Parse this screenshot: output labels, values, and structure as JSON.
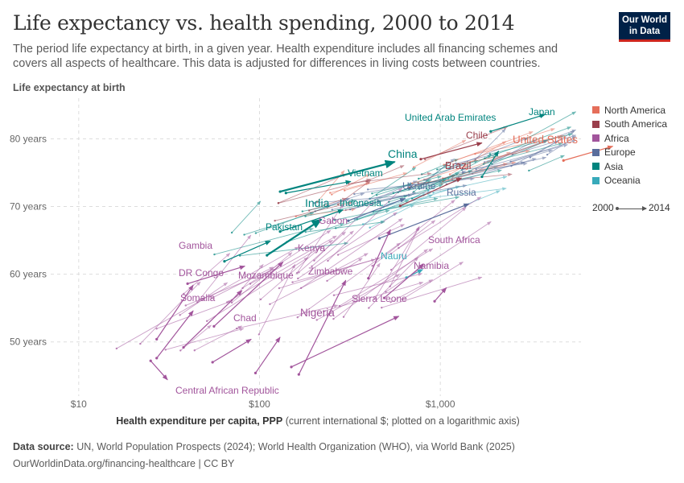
{
  "title": "Life expectancy vs. health spending, 2000 to 2014",
  "subtitle": "The period life expectancy at birth, in a given year. Health expenditure includes all financing schemes and covers all aspects of healthcare. This data is adjusted for differences in living costs between countries.",
  "logo": {
    "line1": "Our World",
    "line2": "in Data"
  },
  "footer": {
    "source_label": "Data source:",
    "source_text": "UN, World Population Prospects (2024); World Health Organization (WHO), via World Bank (2025)",
    "url": "OurWorldinData.org/financing-healthcare | CC BY"
  },
  "legend": {
    "start_year": "2000",
    "end_year": "2014"
  },
  "colors": {
    "North America": "#e56e5a",
    "South America": "#9a3f4c",
    "Africa": "#a2559c",
    "Europe": "#5a6d9c",
    "Asia": "#00847e",
    "Oceania": "#38aaba"
  },
  "chart_data": {
    "type": "scatter",
    "title": "Life expectancy vs. health spending, 2000 to 2014",
    "ylabel": "Life expectancy at birth",
    "xlabel_bold": "Health expenditure per capita, PPP",
    "xlabel_rest": "(current international $; plotted on a logarithmic axis)",
    "x_scale": "log",
    "xlim": [
      7,
      6000
    ],
    "ylim": [
      42,
      86
    ],
    "x_ticks": [
      10,
      100,
      1000
    ],
    "x_tick_labels": [
      "$10",
      "$100",
      "$1,000"
    ],
    "y_ticks": [
      50,
      60,
      70,
      80
    ],
    "y_tick_labels": [
      "50 years",
      "60 years",
      "70 years",
      "80 years"
    ],
    "grid": true,
    "legend_position": "right",
    "series": [
      {
        "name": "North America"
      },
      {
        "name": "South America"
      },
      {
        "name": "Africa"
      },
      {
        "name": "Europe"
      },
      {
        "name": "Asia"
      },
      {
        "name": "Oceania"
      }
    ],
    "labeled_countries": [
      {
        "label": "United States",
        "region": "North America",
        "x0": 4800,
        "y0": 76.8,
        "x1": 9000,
        "y1": 78.9
      },
      {
        "label": "Japan",
        "region": "Asia",
        "x0": 1900,
        "y0": 81.1,
        "x1": 3800,
        "y1": 83.6
      },
      {
        "label": "United Arab Emirates",
        "region": "Asia",
        "x0": 1700,
        "y0": 74.4,
        "x1": 2100,
        "y1": 78.2
      },
      {
        "label": "Chile",
        "region": "South America",
        "x0": 780,
        "y0": 77.0,
        "x1": 1700,
        "y1": 79.4
      },
      {
        "label": "China",
        "region": "Asia",
        "x0": 130,
        "y0": 72.2,
        "x1": 560,
        "y1": 76.6
      },
      {
        "label": "Brazil",
        "region": "South America",
        "x0": 600,
        "y0": 70.1,
        "x1": 1310,
        "y1": 74.2
      },
      {
        "label": "Vietnam",
        "region": "Asia",
        "x0": 140,
        "y0": 72.0,
        "x1": 320,
        "y1": 73.7
      },
      {
        "label": "Ukraine",
        "region": "Europe",
        "x0": 310,
        "y0": 67.9,
        "x1": 640,
        "y1": 71.2
      },
      {
        "label": "Russia",
        "region": "Europe",
        "x0": 460,
        "y0": 65.3,
        "x1": 1440,
        "y1": 70.4
      },
      {
        "label": "India",
        "region": "Asia",
        "x0": 110,
        "y0": 62.8,
        "x1": 220,
        "y1": 68.1
      },
      {
        "label": "Indonesia",
        "region": "Asia",
        "x0": 130,
        "y0": 66.3,
        "x1": 290,
        "y1": 69.5
      },
      {
        "label": "Gabon",
        "region": "Africa",
        "x0": 400,
        "y0": 59.4,
        "x1": 530,
        "y1": 66.6
      },
      {
        "label": "Pakistan",
        "region": "Asia",
        "x0": 64,
        "y0": 61.9,
        "x1": 115,
        "y1": 64.9
      },
      {
        "label": "Gambia",
        "region": "Africa",
        "x0": 40,
        "y0": 58.6,
        "x1": 83,
        "y1": 61.2
      },
      {
        "label": "Kenya",
        "region": "Africa",
        "x0": 56,
        "y0": 52.3,
        "x1": 135,
        "y1": 61.8
      },
      {
        "label": "South Africa",
        "region": "Africa",
        "x0": 930,
        "y0": 56.0,
        "x1": 1080,
        "y1": 58.0
      },
      {
        "label": "Nauru",
        "region": "Oceania",
        "x0": 650,
        "y0": 59.5,
        "x1": 800,
        "y1": 60.7
      },
      {
        "label": "Namibia",
        "region": "Africa",
        "x0": 490,
        "y0": 56.5,
        "x1": 810,
        "y1": 61.5
      },
      {
        "label": "DR Congo",
        "region": "Africa",
        "x0": 27,
        "y0": 50.4,
        "x1": 43,
        "y1": 58.4
      },
      {
        "label": "Zimbabwe",
        "region": "Africa",
        "x0": 165,
        "y0": 45.2,
        "x1": 300,
        "y1": 59.1
      },
      {
        "label": "Mozambique",
        "region": "Africa",
        "x0": 38,
        "y0": 49.2,
        "x1": 80,
        "y1": 57.6
      },
      {
        "label": "Somalia",
        "region": "Africa",
        "x0": 27,
        "y0": 47.6,
        "x1": 43,
        "y1": 54.6
      },
      {
        "label": "Sierra Leone",
        "region": "Africa",
        "x0": 95,
        "y0": 45.4,
        "x1": 130,
        "y1": 50.7
      },
      {
        "label": "Nigeria",
        "region": "Africa",
        "x0": 150,
        "y0": 46.3,
        "x1": 590,
        "y1": 53.8
      },
      {
        "label": "Chad",
        "region": "Africa",
        "x0": 55,
        "y0": 47.0,
        "x1": 90,
        "y1": 50.4
      },
      {
        "label": "Central African Republic",
        "region": "Africa",
        "x0": 25,
        "y0": 47.2,
        "x1": 31,
        "y1": 44.4
      }
    ]
  }
}
